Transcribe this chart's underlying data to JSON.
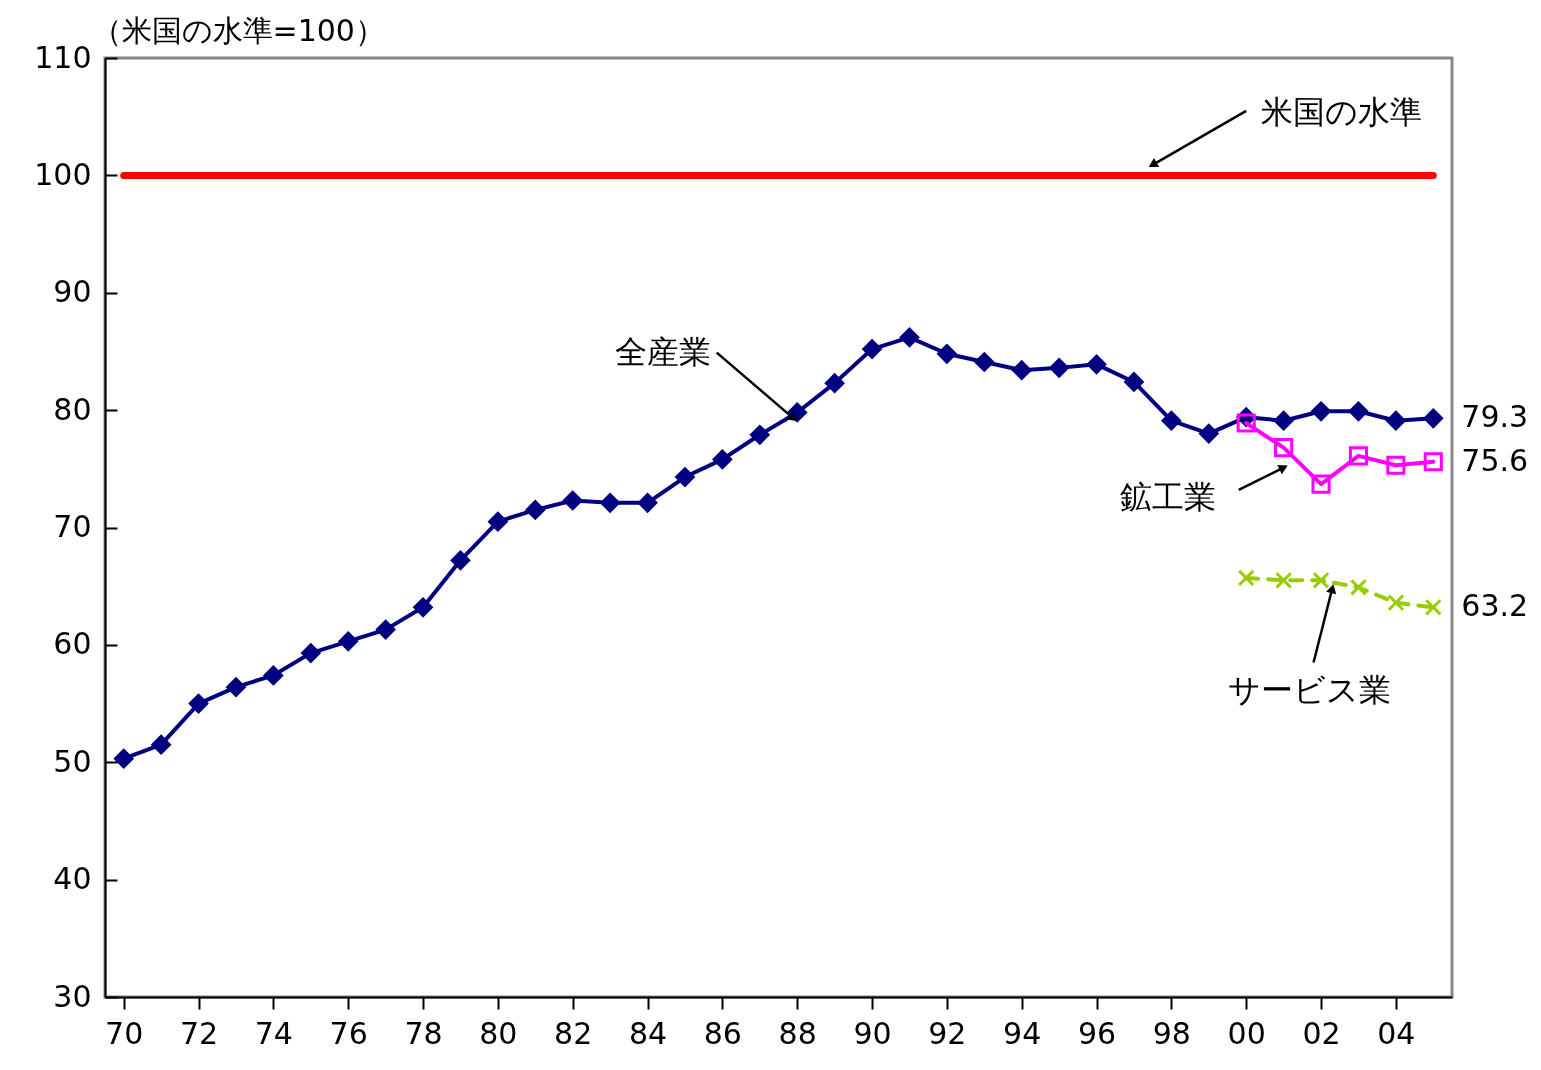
{
  "chart_data": {
    "type": "line",
    "ylabel": "（米国の水準=100）",
    "x": [
      1970,
      1971,
      1972,
      1973,
      1974,
      1975,
      1976,
      1977,
      1978,
      1979,
      1980,
      1981,
      1982,
      1983,
      1984,
      1985,
      1986,
      1987,
      1988,
      1989,
      1990,
      1991,
      1992,
      1993,
      1994,
      1995,
      1996,
      1997,
      1998,
      1999,
      2000,
      2001,
      2002,
      2003,
      2004,
      2005
    ],
    "xlim": [
      1969.5,
      2005.5
    ],
    "xticks": [
      {
        "value": 1970,
        "label": "70"
      },
      {
        "value": 1972,
        "label": "72"
      },
      {
        "value": 1974,
        "label": "74"
      },
      {
        "value": 1976,
        "label": "76"
      },
      {
        "value": 1978,
        "label": "78"
      },
      {
        "value": 1980,
        "label": "80"
      },
      {
        "value": 1982,
        "label": "82"
      },
      {
        "value": 1984,
        "label": "84"
      },
      {
        "value": 1986,
        "label": "86"
      },
      {
        "value": 1988,
        "label": "88"
      },
      {
        "value": 1990,
        "label": "90"
      },
      {
        "value": 1992,
        "label": "92"
      },
      {
        "value": 1994,
        "label": "94"
      },
      {
        "value": 1996,
        "label": "96"
      },
      {
        "value": 1998,
        "label": "98"
      },
      {
        "value": 2000,
        "label": "00"
      },
      {
        "value": 2002,
        "label": "02"
      },
      {
        "value": 2004,
        "label": "04"
      }
    ],
    "ylim": [
      30,
      110
    ],
    "yticks": [
      30,
      40,
      50,
      60,
      70,
      80,
      90,
      100,
      110
    ],
    "grid": false,
    "series": [
      {
        "name": "米国の水準",
        "color": "#ff0000",
        "marker": "none",
        "line_style": "solid",
        "values": [
          100,
          100,
          100,
          100,
          100,
          100,
          100,
          100,
          100,
          100,
          100,
          100,
          100,
          100,
          100,
          100,
          100,
          100,
          100,
          100,
          100,
          100,
          100,
          100,
          100,
          100,
          100,
          100,
          100,
          100,
          100,
          100,
          100,
          100,
          100,
          100
        ]
      },
      {
        "name": "全産業",
        "color": "#000080",
        "marker": "diamond",
        "line_style": "solid",
        "values": [
          50.3,
          51.5,
          55.0,
          56.4,
          57.4,
          59.3,
          60.3,
          61.3,
          63.2,
          67.2,
          70.5,
          71.5,
          72.3,
          72.1,
          72.1,
          74.3,
          75.8,
          77.9,
          79.8,
          82.3,
          85.2,
          86.2,
          84.8,
          84.1,
          83.4,
          83.6,
          83.9,
          82.4,
          79.1,
          78.0,
          79.4,
          79.1,
          79.9,
          79.9,
          79.1,
          79.3
        ],
        "value_labels": [
          null,
          null,
          null,
          null,
          null,
          null,
          null,
          null,
          null,
          null,
          null,
          null,
          null,
          null,
          null,
          null,
          null,
          null,
          null,
          null,
          null,
          null,
          null,
          null,
          null,
          null,
          null,
          null,
          null,
          null,
          null,
          null,
          null,
          null,
          null,
          "79.3"
        ]
      },
      {
        "name": "鉱工業",
        "color": "#ff00ff",
        "marker": "square",
        "line_style": "solid",
        "values": [
          null,
          null,
          null,
          null,
          null,
          null,
          null,
          null,
          null,
          null,
          null,
          null,
          null,
          null,
          null,
          null,
          null,
          null,
          null,
          null,
          null,
          null,
          null,
          null,
          null,
          null,
          null,
          null,
          null,
          null,
          78.9,
          76.8,
          73.7,
          76.1,
          75.3,
          75.6
        ],
        "value_labels": [
          null,
          null,
          null,
          null,
          null,
          null,
          null,
          null,
          null,
          null,
          null,
          null,
          null,
          null,
          null,
          null,
          null,
          null,
          null,
          null,
          null,
          null,
          null,
          null,
          null,
          null,
          null,
          null,
          null,
          null,
          null,
          null,
          null,
          null,
          null,
          "75.6"
        ]
      },
      {
        "name": "サービス業",
        "color": "#99cc00",
        "marker": "cross",
        "line_style": "dashed",
        "values": [
          null,
          null,
          null,
          null,
          null,
          null,
          null,
          null,
          null,
          null,
          null,
          null,
          null,
          null,
          null,
          null,
          null,
          null,
          null,
          null,
          null,
          null,
          null,
          null,
          null,
          null,
          null,
          null,
          null,
          null,
          65.7,
          65.5,
          65.5,
          64.9,
          63.6,
          63.2
        ],
        "value_labels": [
          null,
          null,
          null,
          null,
          null,
          null,
          null,
          null,
          null,
          null,
          null,
          null,
          null,
          null,
          null,
          null,
          null,
          null,
          null,
          null,
          null,
          null,
          null,
          null,
          null,
          null,
          null,
          null,
          null,
          null,
          null,
          null,
          null,
          null,
          null,
          "63.2"
        ]
      }
    ]
  }
}
